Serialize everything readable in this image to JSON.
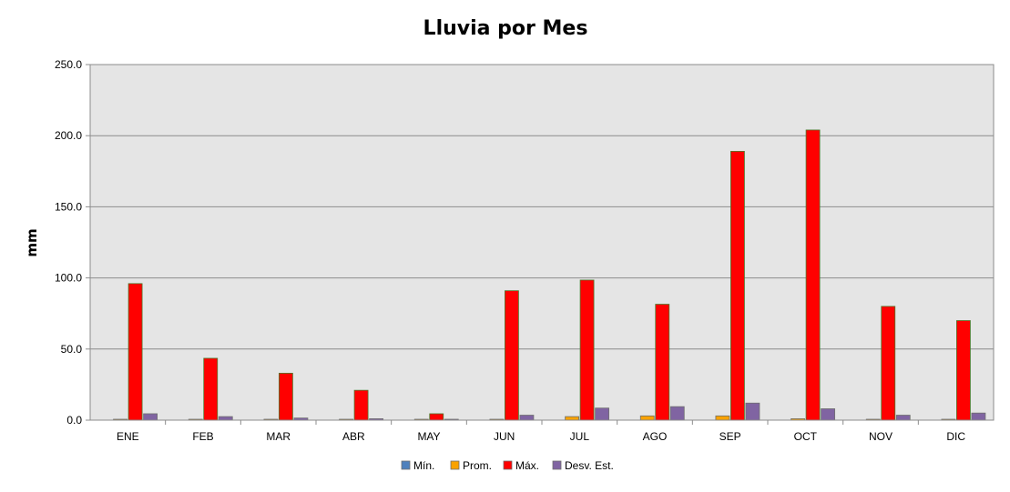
{
  "chart_data": {
    "type": "bar",
    "title": "Lluvia por Mes",
    "xlabel": "",
    "ylabel": "mm",
    "ylim": [
      0,
      250
    ],
    "yticks": [
      "0.0",
      "50.0",
      "100.0",
      "150.0",
      "200.0",
      "250.0"
    ],
    "grid": true,
    "legend_position": "bottom",
    "categories": [
      "ENE",
      "FEB",
      "MAR",
      "ABR",
      "MAY",
      "JUN",
      "JUL",
      "AGO",
      "SEP",
      "OCT",
      "NOV",
      "DIC"
    ],
    "series": [
      {
        "name": "Mín.",
        "color": "#4F81BD",
        "values": [
          0,
          0,
          0,
          0,
          0,
          0,
          0,
          0,
          0,
          0,
          0,
          0
        ]
      },
      {
        "name": "Prom.",
        "color": "#F9A200",
        "values": [
          0.5,
          0.4,
          0.3,
          0.2,
          0.1,
          0.5,
          2.5,
          3.0,
          3.0,
          1.0,
          0.5,
          0.5
        ]
      },
      {
        "name": "Máx.",
        "color": "#FF0000",
        "values": [
          96,
          43.5,
          33,
          21,
          4.5,
          91,
          98.5,
          81.5,
          189,
          204,
          80,
          70
        ]
      },
      {
        "name": "Desv. Est.",
        "color": "#8064A2",
        "values": [
          4.5,
          2.5,
          1.5,
          1.0,
          0.3,
          3.5,
          8.5,
          9.5,
          12,
          8,
          3.5,
          5
        ]
      }
    ]
  }
}
